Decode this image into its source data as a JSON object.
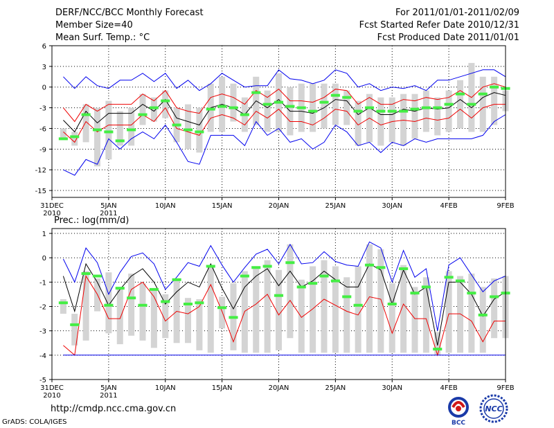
{
  "header": {
    "title": "DERF/NCC/BCC Monthly Forecast",
    "member_size": "Member Size=40",
    "variable": "Mean Surf. Temp.: °C",
    "period": "For 2011/01/01-2011/02/09",
    "started": "Fcst Started Refer Date 2010/12/31",
    "produced": "Fcst Produced Date 2011/01/01"
  },
  "footer": {
    "url": "http://cmdp.ncc.cma.gov.cn",
    "credit": "GrADS: COLA/IGES",
    "logo_bcc_label": "BCC",
    "logo_ncc_label": "NCC"
  },
  "colors": {
    "envelope": "#0000ee",
    "spread": "#ee0000",
    "mean": "#000000",
    "bar": "#d4d4d4",
    "observed": "#44ee44"
  },
  "x_ticks": [
    {
      "day": 0,
      "label": "31DEC",
      "sub": "2010"
    },
    {
      "day": 5,
      "label": "5JAN",
      "sub": "2011"
    },
    {
      "day": 10,
      "label": "10JAN",
      "sub": ""
    },
    {
      "day": 15,
      "label": "15JAN",
      "sub": ""
    },
    {
      "day": 20,
      "label": "20JAN",
      "sub": ""
    },
    {
      "day": 25,
      "label": "25JAN",
      "sub": ""
    },
    {
      "day": 30,
      "label": "30JAN",
      "sub": ""
    },
    {
      "day": 35,
      "label": "4FEB",
      "sub": ""
    },
    {
      "day": 40,
      "label": "9FEB",
      "sub": ""
    }
  ],
  "chart_data": [
    {
      "type": "line",
      "title": "Mean Surf. Temp.: °C",
      "xlabel": "",
      "ylabel": "°C",
      "xlim": [
        0,
        40
      ],
      "ylim": [
        -16,
        6
      ],
      "y_ticks": [
        6,
        3,
        0,
        -3,
        -6,
        -9,
        -12,
        -15
      ],
      "grid": true,
      "x": [
        1,
        2,
        3,
        4,
        5,
        6,
        7,
        8,
        9,
        10,
        11,
        12,
        13,
        14,
        15,
        16,
        17,
        18,
        19,
        20,
        21,
        22,
        23,
        24,
        25,
        26,
        27,
        28,
        29,
        30,
        31,
        32,
        33,
        34,
        35,
        36,
        37,
        38,
        39,
        40
      ],
      "series": [
        {
          "name": "max",
          "values": [
            1.5,
            -0.2,
            1.5,
            0.2,
            -0.2,
            1.0,
            1.0,
            2.0,
            0.8,
            2.0,
            -0.2,
            1.0,
            -0.5,
            0.5,
            2.0,
            1.0,
            0.0,
            0.2,
            0.2,
            2.5,
            1.2,
            1.0,
            0.5,
            1.0,
            2.5,
            2.0,
            0.0,
            0.5,
            -0.5,
            0.0,
            -0.2,
            0.2,
            -0.5,
            1.0,
            1.0,
            1.5,
            2.0,
            2.5,
            2.5,
            1.5
          ]
        },
        {
          "name": "upper",
          "values": [
            -3.0,
            -5.0,
            -2.5,
            -3.5,
            -2.5,
            -2.5,
            -2.5,
            -1.0,
            -2.0,
            -0.5,
            -3.0,
            -3.5,
            -3.8,
            -1.5,
            -1.0,
            -1.5,
            -2.5,
            -0.5,
            -1.5,
            -0.3,
            -2.0,
            -2.0,
            -2.2,
            -1.5,
            -0.3,
            -0.5,
            -2.5,
            -1.5,
            -2.5,
            -2.5,
            -1.8,
            -2.0,
            -1.5,
            -1.8,
            -1.5,
            -0.5,
            -1.5,
            0.0,
            0.5,
            0.0
          ]
        },
        {
          "name": "mean",
          "values": [
            -4.8,
            -6.5,
            -3.5,
            -5.2,
            -3.8,
            -3.8,
            -3.8,
            -2.5,
            -3.5,
            -1.8,
            -4.5,
            -5.0,
            -5.5,
            -3.0,
            -2.5,
            -3.0,
            -4.0,
            -2.0,
            -3.0,
            -1.8,
            -3.5,
            -3.5,
            -3.8,
            -3.0,
            -1.8,
            -2.0,
            -4.0,
            -3.0,
            -4.0,
            -4.0,
            -3.2,
            -3.5,
            -3.0,
            -3.2,
            -3.0,
            -1.8,
            -3.0,
            -1.5,
            -0.8,
            -1.2
          ]
        },
        {
          "name": "lower",
          "values": [
            -6.5,
            -8.0,
            -5.0,
            -6.5,
            -5.5,
            -5.5,
            -5.5,
            -4.0,
            -5.0,
            -3.0,
            -6.0,
            -6.5,
            -7.0,
            -4.5,
            -4.0,
            -4.5,
            -5.5,
            -3.5,
            -4.5,
            -3.2,
            -5.0,
            -5.0,
            -5.5,
            -4.5,
            -3.2,
            -3.5,
            -5.5,
            -4.5,
            -5.5,
            -5.0,
            -4.8,
            -5.0,
            -4.5,
            -4.8,
            -4.5,
            -3.2,
            -4.5,
            -3.0,
            -2.5,
            -2.5
          ]
        },
        {
          "name": "min",
          "values": [
            -12.0,
            -12.8,
            -10.5,
            -11.2,
            -7.5,
            -9.0,
            -7.5,
            -6.5,
            -7.5,
            -5.5,
            -8.0,
            -10.8,
            -11.2,
            -7.0,
            -7.0,
            -7.0,
            -8.5,
            -5.0,
            -7.0,
            -6.0,
            -8.0,
            -7.5,
            -9.0,
            -8.0,
            -5.5,
            -6.5,
            -8.5,
            -8.0,
            -9.5,
            -8.0,
            -8.5,
            -7.5,
            -8.0,
            -7.5,
            -7.5,
            -7.5,
            -7.5,
            -7.0,
            -5.0,
            -4.0
          ]
        },
        {
          "name": "observed",
          "values": [
            -7.5,
            -7.2,
            -4.0,
            -6.2,
            -6.5,
            -7.8,
            -6.2,
            -4.0,
            -3.0,
            -2.0,
            -5.5,
            -6.2,
            -6.5,
            -3.2,
            -2.8,
            -3.0,
            -4.0,
            -0.8,
            -2.5,
            -2.2,
            -2.8,
            -3.0,
            -3.5,
            -2.2,
            -1.2,
            -1.5,
            -3.5,
            -3.0,
            -3.5,
            -3.5,
            -3.5,
            -3.2,
            -3.0,
            -3.0,
            -2.5,
            -1.0,
            -2.5,
            -1.0,
            0.0,
            -0.2
          ]
        }
      ],
      "bars": {
        "name": "ensemble-range",
        "top": [
          -6.0,
          -6.5,
          -2.5,
          -3.0,
          -2.0,
          -3.5,
          -3.0,
          -1.0,
          -1.5,
          -0.5,
          -3.0,
          -2.5,
          -3.0,
          0.5,
          1.5,
          0.5,
          -1.5,
          1.5,
          -0.5,
          2.0,
          0.0,
          0.5,
          0.5,
          0.5,
          0.5,
          -0.5,
          -2.0,
          -1.0,
          -1.5,
          -1.5,
          -1.0,
          -1.0,
          -0.5,
          -1.5,
          -0.5,
          1.0,
          3.5,
          1.5,
          1.5,
          -0.5
        ],
        "bottom": [
          -7.5,
          -8.5,
          -8.0,
          -11.5,
          -10.5,
          -8.5,
          -8.5,
          -5.5,
          -5.0,
          -4.5,
          -8.0,
          -9.0,
          -9.5,
          -6.5,
          -6.5,
          -5.0,
          -6.5,
          -5.5,
          -6.5,
          -6.5,
          -7.0,
          -6.5,
          -6.5,
          -6.0,
          -5.5,
          -5.5,
          -8.5,
          -8.0,
          -8.5,
          -8.0,
          -8.5,
          -7.5,
          -6.5,
          -7.0,
          -6.5,
          -6.0,
          -6.5,
          -6.5,
          -5.5,
          -3.5
        ]
      }
    },
    {
      "type": "line",
      "title": "Prec.: log(mm/d)",
      "xlabel": "",
      "ylabel": "log(mm/d)",
      "xlim": [
        0,
        40
      ],
      "ylim": [
        -5,
        1.2
      ],
      "y_ticks": [
        1,
        0,
        -1,
        -2,
        -3,
        -4,
        -5
      ],
      "grid": true,
      "x": [
        1,
        2,
        3,
        4,
        5,
        6,
        7,
        8,
        9,
        10,
        11,
        12,
        13,
        14,
        15,
        16,
        17,
        18,
        19,
        20,
        21,
        22,
        23,
        24,
        25,
        26,
        27,
        28,
        29,
        30,
        31,
        32,
        33,
        34,
        35,
        36,
        37,
        38,
        39,
        40
      ],
      "series": [
        {
          "name": "max",
          "values": [
            -0.05,
            -1.0,
            0.4,
            -0.2,
            -1.5,
            -0.6,
            0.05,
            0.2,
            -0.25,
            -1.3,
            -0.8,
            -0.2,
            -0.35,
            0.5,
            -0.3,
            -1.0,
            -0.4,
            0.15,
            0.35,
            -0.25,
            0.55,
            -0.25,
            -0.2,
            0.25,
            -0.15,
            -0.3,
            -0.35,
            0.65,
            0.4,
            -1.0,
            0.3,
            -0.8,
            -0.45,
            -3.0,
            -0.3,
            0.0,
            -0.7,
            -1.4,
            -0.95,
            -0.75
          ]
        },
        {
          "name": "mean",
          "values": [
            -0.75,
            -2.2,
            -0.25,
            -1.0,
            -1.95,
            -1.3,
            -0.75,
            -0.45,
            -1.0,
            -1.9,
            -1.4,
            -1.0,
            -1.2,
            -0.25,
            -1.25,
            -2.1,
            -1.2,
            -0.75,
            -0.45,
            -1.15,
            -0.55,
            -1.2,
            -0.95,
            -0.55,
            -0.9,
            -1.2,
            -1.2,
            -0.25,
            -0.5,
            -1.9,
            -0.5,
            -1.5,
            -1.2,
            -3.6,
            -1.0,
            -1.0,
            -1.5,
            -2.4,
            -1.7,
            -1.4
          ]
        },
        {
          "name": "lower",
          "values": [
            -3.6,
            -4.0,
            -0.75,
            -1.5,
            -2.5,
            -2.5,
            -1.3,
            -1.0,
            -1.6,
            -2.6,
            -2.2,
            -2.3,
            -2.0,
            -1.1,
            -2.2,
            -3.45,
            -2.2,
            -1.9,
            -1.5,
            -2.35,
            -1.75,
            -2.45,
            -2.1,
            -1.7,
            -1.95,
            -2.2,
            -2.35,
            -1.6,
            -1.7,
            -3.1,
            -1.9,
            -2.5,
            -2.5,
            -4.0,
            -2.3,
            -2.3,
            -2.6,
            -3.45,
            -2.6,
            -2.6
          ]
        },
        {
          "name": "min",
          "values": [
            -4.0,
            -4.0,
            -4.0,
            -4.0,
            -4.0,
            -4.0,
            -4.0,
            -4.0,
            -4.0,
            -4.0,
            -4.0,
            -4.0,
            -4.0,
            -4.0,
            -4.0,
            -4.0,
            -4.0,
            -4.0,
            -4.0,
            -4.0,
            -4.0,
            -4.0,
            -4.0,
            -4.0,
            -4.0,
            -4.0,
            -4.0,
            -4.0,
            -4.0,
            -4.0,
            -4.0,
            -4.0,
            -4.0,
            -4.0,
            -4.0,
            -4.0,
            -4.0,
            -4.0,
            -4.0,
            -4.0
          ]
        },
        {
          "name": "observed",
          "values": [
            -1.85,
            -2.75,
            -0.65,
            -0.75,
            -1.95,
            -1.25,
            -1.65,
            -1.95,
            -1.3,
            -1.8,
            -0.9,
            -1.9,
            -1.85,
            -0.35,
            -2.05,
            -2.45,
            -0.75,
            -0.4,
            -0.35,
            -1.55,
            -0.2,
            -1.2,
            -1.05,
            -0.75,
            -0.95,
            -1.6,
            -1.95,
            -0.3,
            -0.4,
            -1.9,
            -0.45,
            -1.45,
            -1.2,
            -3.75,
            -0.8,
            -0.95,
            -1.45,
            -2.35,
            -1.6,
            -1.45
          ]
        }
      ],
      "bars": {
        "name": "ensemble-range",
        "top": [
          -1.7,
          -2.3,
          -0.55,
          -0.85,
          -0.6,
          -1.2,
          -0.65,
          -1.05,
          -1.25,
          -1.5,
          -0.85,
          -1.65,
          -1.7,
          -0.35,
          -1.6,
          -1.05,
          -0.55,
          -0.45,
          -0.1,
          -0.5,
          0.55,
          -0.9,
          -0.35,
          -0.1,
          -0.35,
          -0.8,
          -0.35,
          0.55,
          0.35,
          -1.05,
          -0.3,
          -1.2,
          -0.8,
          -3.05,
          -0.55,
          -0.75,
          -0.65,
          -1.2,
          -0.85,
          -0.75
        ],
        "bottom": [
          -2.3,
          -3.6,
          -3.4,
          -2.2,
          -3.1,
          -3.55,
          -3.2,
          -3.4,
          -3.7,
          -3.3,
          -3.5,
          -3.5,
          -3.8,
          -3.9,
          -2.9,
          -3.8,
          -3.9,
          -3.9,
          -3.9,
          -3.8,
          -3.3,
          -3.9,
          -3.9,
          -3.9,
          -3.9,
          -3.9,
          -3.9,
          -3.9,
          -3.9,
          -3.9,
          -3.9,
          -3.9,
          -3.9,
          -4.0,
          -3.9,
          -3.9,
          -3.9,
          -3.9,
          -3.3,
          -3.3
        ]
      }
    }
  ]
}
